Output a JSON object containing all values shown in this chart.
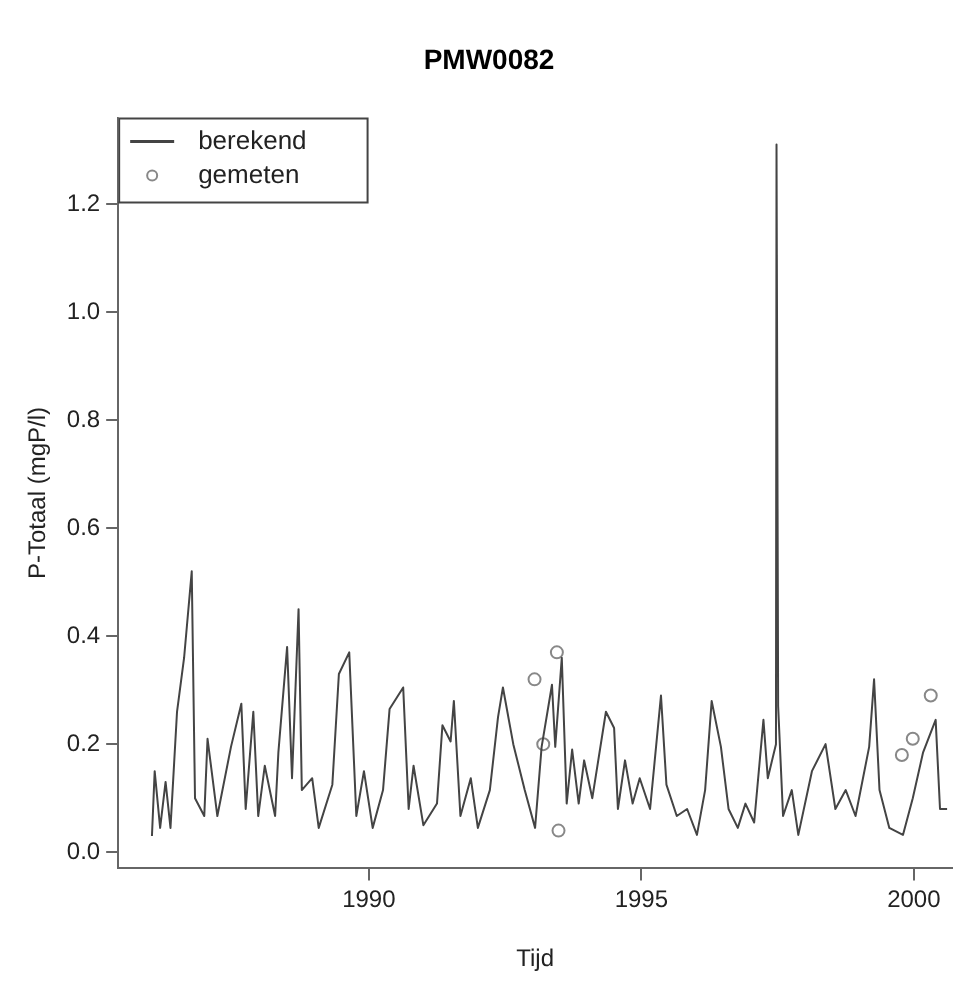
{
  "chart_data": {
    "type": "line",
    "title": "PMW0082",
    "xlabel": "Tijd",
    "ylabel": "P-Totaal (mgP/l)",
    "xlim": [
      1985.4,
      2000.7
    ],
    "xticks": [
      1990,
      1995,
      2000
    ],
    "ylim": [
      -0.03,
      1.36
    ],
    "yticks": [
      {
        "value": 0,
        "label": "0.0"
      },
      {
        "value": 0.2,
        "label": "0.2"
      },
      {
        "value": 0.4,
        "label": "0.4"
      },
      {
        "value": 0.6,
        "label": "0.6"
      },
      {
        "value": 0.8,
        "label": "0.8"
      },
      {
        "value": 1,
        "label": "1.0"
      },
      {
        "value": 1.2,
        "label": "1.2"
      }
    ],
    "grid": false,
    "legend": "top left",
    "series": [
      {
        "name": "berekend",
        "color": "#444444",
        "marker": "none",
        "x": [
          1986.02,
          1986.07,
          1986.17,
          1986.27,
          1986.36,
          1986.48,
          1986.61,
          1986.75,
          1986.81,
          1986.98,
          1987.04,
          1987.22,
          1987.47,
          1987.66,
          1987.74,
          1987.88,
          1987.97,
          1988.09,
          1988.28,
          1988.34,
          1988.5,
          1988.59,
          1988.71,
          1988.77,
          1988.96,
          1989.08,
          1989.33,
          1989.45,
          1989.64,
          1989.77,
          1989.91,
          1990.07,
          1990.26,
          1990.38,
          1990.63,
          1990.73,
          1990.82,
          1991.0,
          1991.25,
          1991.35,
          1991.5,
          1991.56,
          1991.68,
          1991.87,
          1992.0,
          1992.22,
          1992.37,
          1992.46,
          1992.65,
          1992.86,
          1993.05,
          1993.17,
          1993.36,
          1993.42,
          1993.54,
          1993.63,
          1993.73,
          1993.85,
          1993.95,
          1994.1,
          1994.35,
          1994.5,
          1994.57,
          1994.7,
          1994.84,
          1994.97,
          1995.16,
          1995.36,
          1995.46,
          1995.65,
          1995.84,
          1996.02,
          1996.17,
          1996.29,
          1996.46,
          1996.6,
          1996.77,
          1996.91,
          1997.07,
          1997.24,
          1997.32,
          1997.47,
          1997.48,
          1997.51,
          1997.6,
          1997.76,
          1997.88,
          1998.13,
          1998.38,
          1998.56,
          1998.75,
          1998.93,
          1999.18,
          1999.27,
          1999.37,
          1999.55,
          1999.8,
          1999.98,
          2000.17,
          2000.4,
          2000.48,
          2000.61
        ],
        "values": [
          0.03,
          0.15,
          0.045,
          0.13,
          0.045,
          0.26,
          0.36,
          0.52,
          0.1,
          0.067,
          0.21,
          0.067,
          0.195,
          0.275,
          0.08,
          0.26,
          0.067,
          0.16,
          0.067,
          0.185,
          0.38,
          0.137,
          0.45,
          0.115,
          0.137,
          0.045,
          0.125,
          0.33,
          0.37,
          0.067,
          0.15,
          0.045,
          0.115,
          0.265,
          0.305,
          0.08,
          0.16,
          0.05,
          0.09,
          0.235,
          0.205,
          0.28,
          0.067,
          0.137,
          0.045,
          0.115,
          0.25,
          0.305,
          0.2,
          0.115,
          0.045,
          0.195,
          0.31,
          0.195,
          0.36,
          0.09,
          0.19,
          0.09,
          0.17,
          0.1,
          0.26,
          0.23,
          0.08,
          0.17,
          0.09,
          0.137,
          0.08,
          0.29,
          0.125,
          0.067,
          0.08,
          0.032,
          0.115,
          0.28,
          0.195,
          0.08,
          0.045,
          0.09,
          0.055,
          0.245,
          0.137,
          0.2,
          1.31,
          0.27,
          0.067,
          0.115,
          0.032,
          0.15,
          0.2,
          0.08,
          0.115,
          0.067,
          0.195,
          0.32,
          0.115,
          0.045,
          0.032,
          0.1,
          0.185,
          0.245,
          0.08,
          0.08
        ]
      },
      {
        "name": "gemeten",
        "type": "scatter",
        "color": "#888888",
        "marker": "circle",
        "x": [
          1993.04,
          1993.2,
          1993.45,
          1993.48,
          1999.78,
          1999.98,
          2000.31
        ],
        "values": [
          0.32,
          0.2,
          0.37,
          0.04,
          0.18,
          0.21,
          0.29
        ]
      }
    ]
  }
}
